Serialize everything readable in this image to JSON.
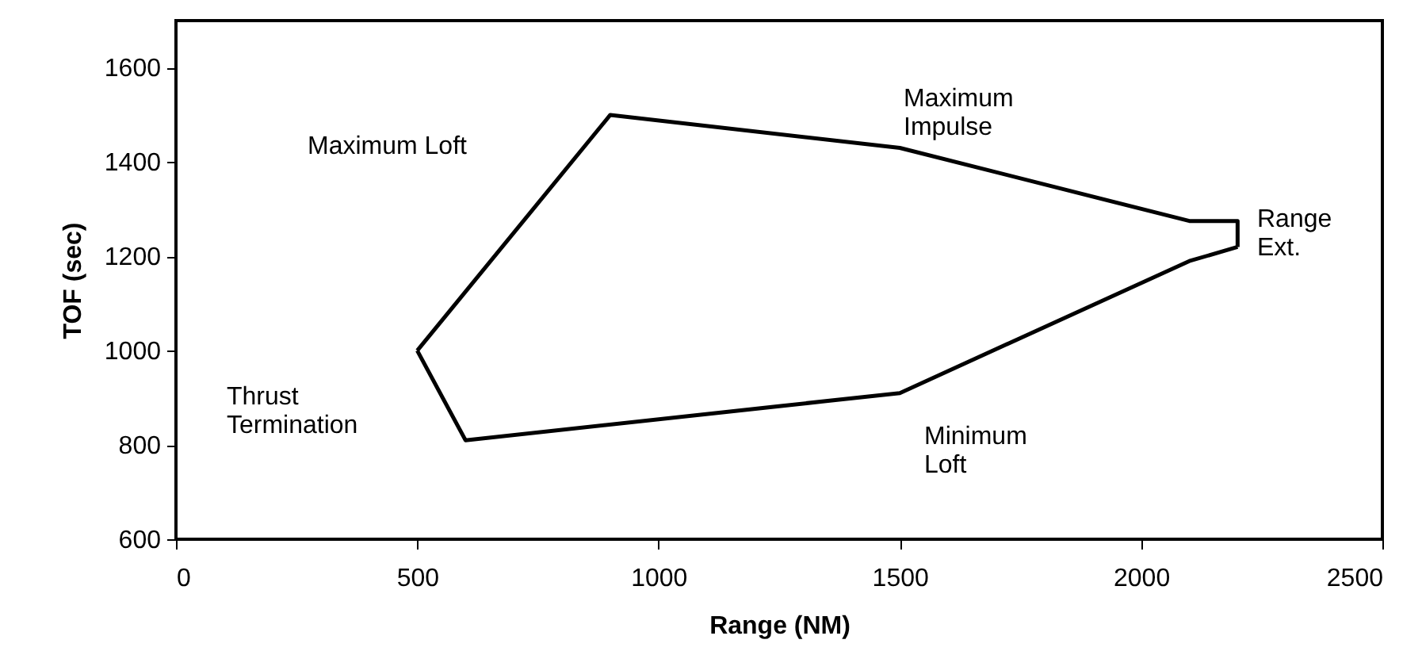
{
  "chart_data": {
    "type": "line",
    "xlabel": "Range (NM)",
    "ylabel": "TOF (sec)",
    "series": [
      {
        "color": "#000000",
        "x": [
          500,
          900,
          1500,
          2100,
          2200,
          2200
        ],
        "values": [
          1000,
          1500,
          1430,
          1275,
          1275,
          1220
        ]
      },
      {
        "color": "#000000",
        "x": [
          500,
          600,
          1500,
          2100,
          2200
        ],
        "values": [
          1000,
          810,
          910,
          1190,
          1220
        ]
      }
    ],
    "xlim": [
      0,
      2500
    ],
    "xticks": [
      0,
      500,
      1000,
      1500,
      2000,
      2500
    ],
    "ylim": [
      600,
      1700
    ],
    "yticks": [
      600,
      800,
      1000,
      1200,
      1400,
      1600
    ],
    "grid": false,
    "marker": "none",
    "line_style": "solid",
    "annotations": [
      "Maximum Loft",
      "Maximum\nImpulse",
      "Range\nExt.",
      "Thrust\nTermination",
      "Minimum\nLoft"
    ]
  }
}
